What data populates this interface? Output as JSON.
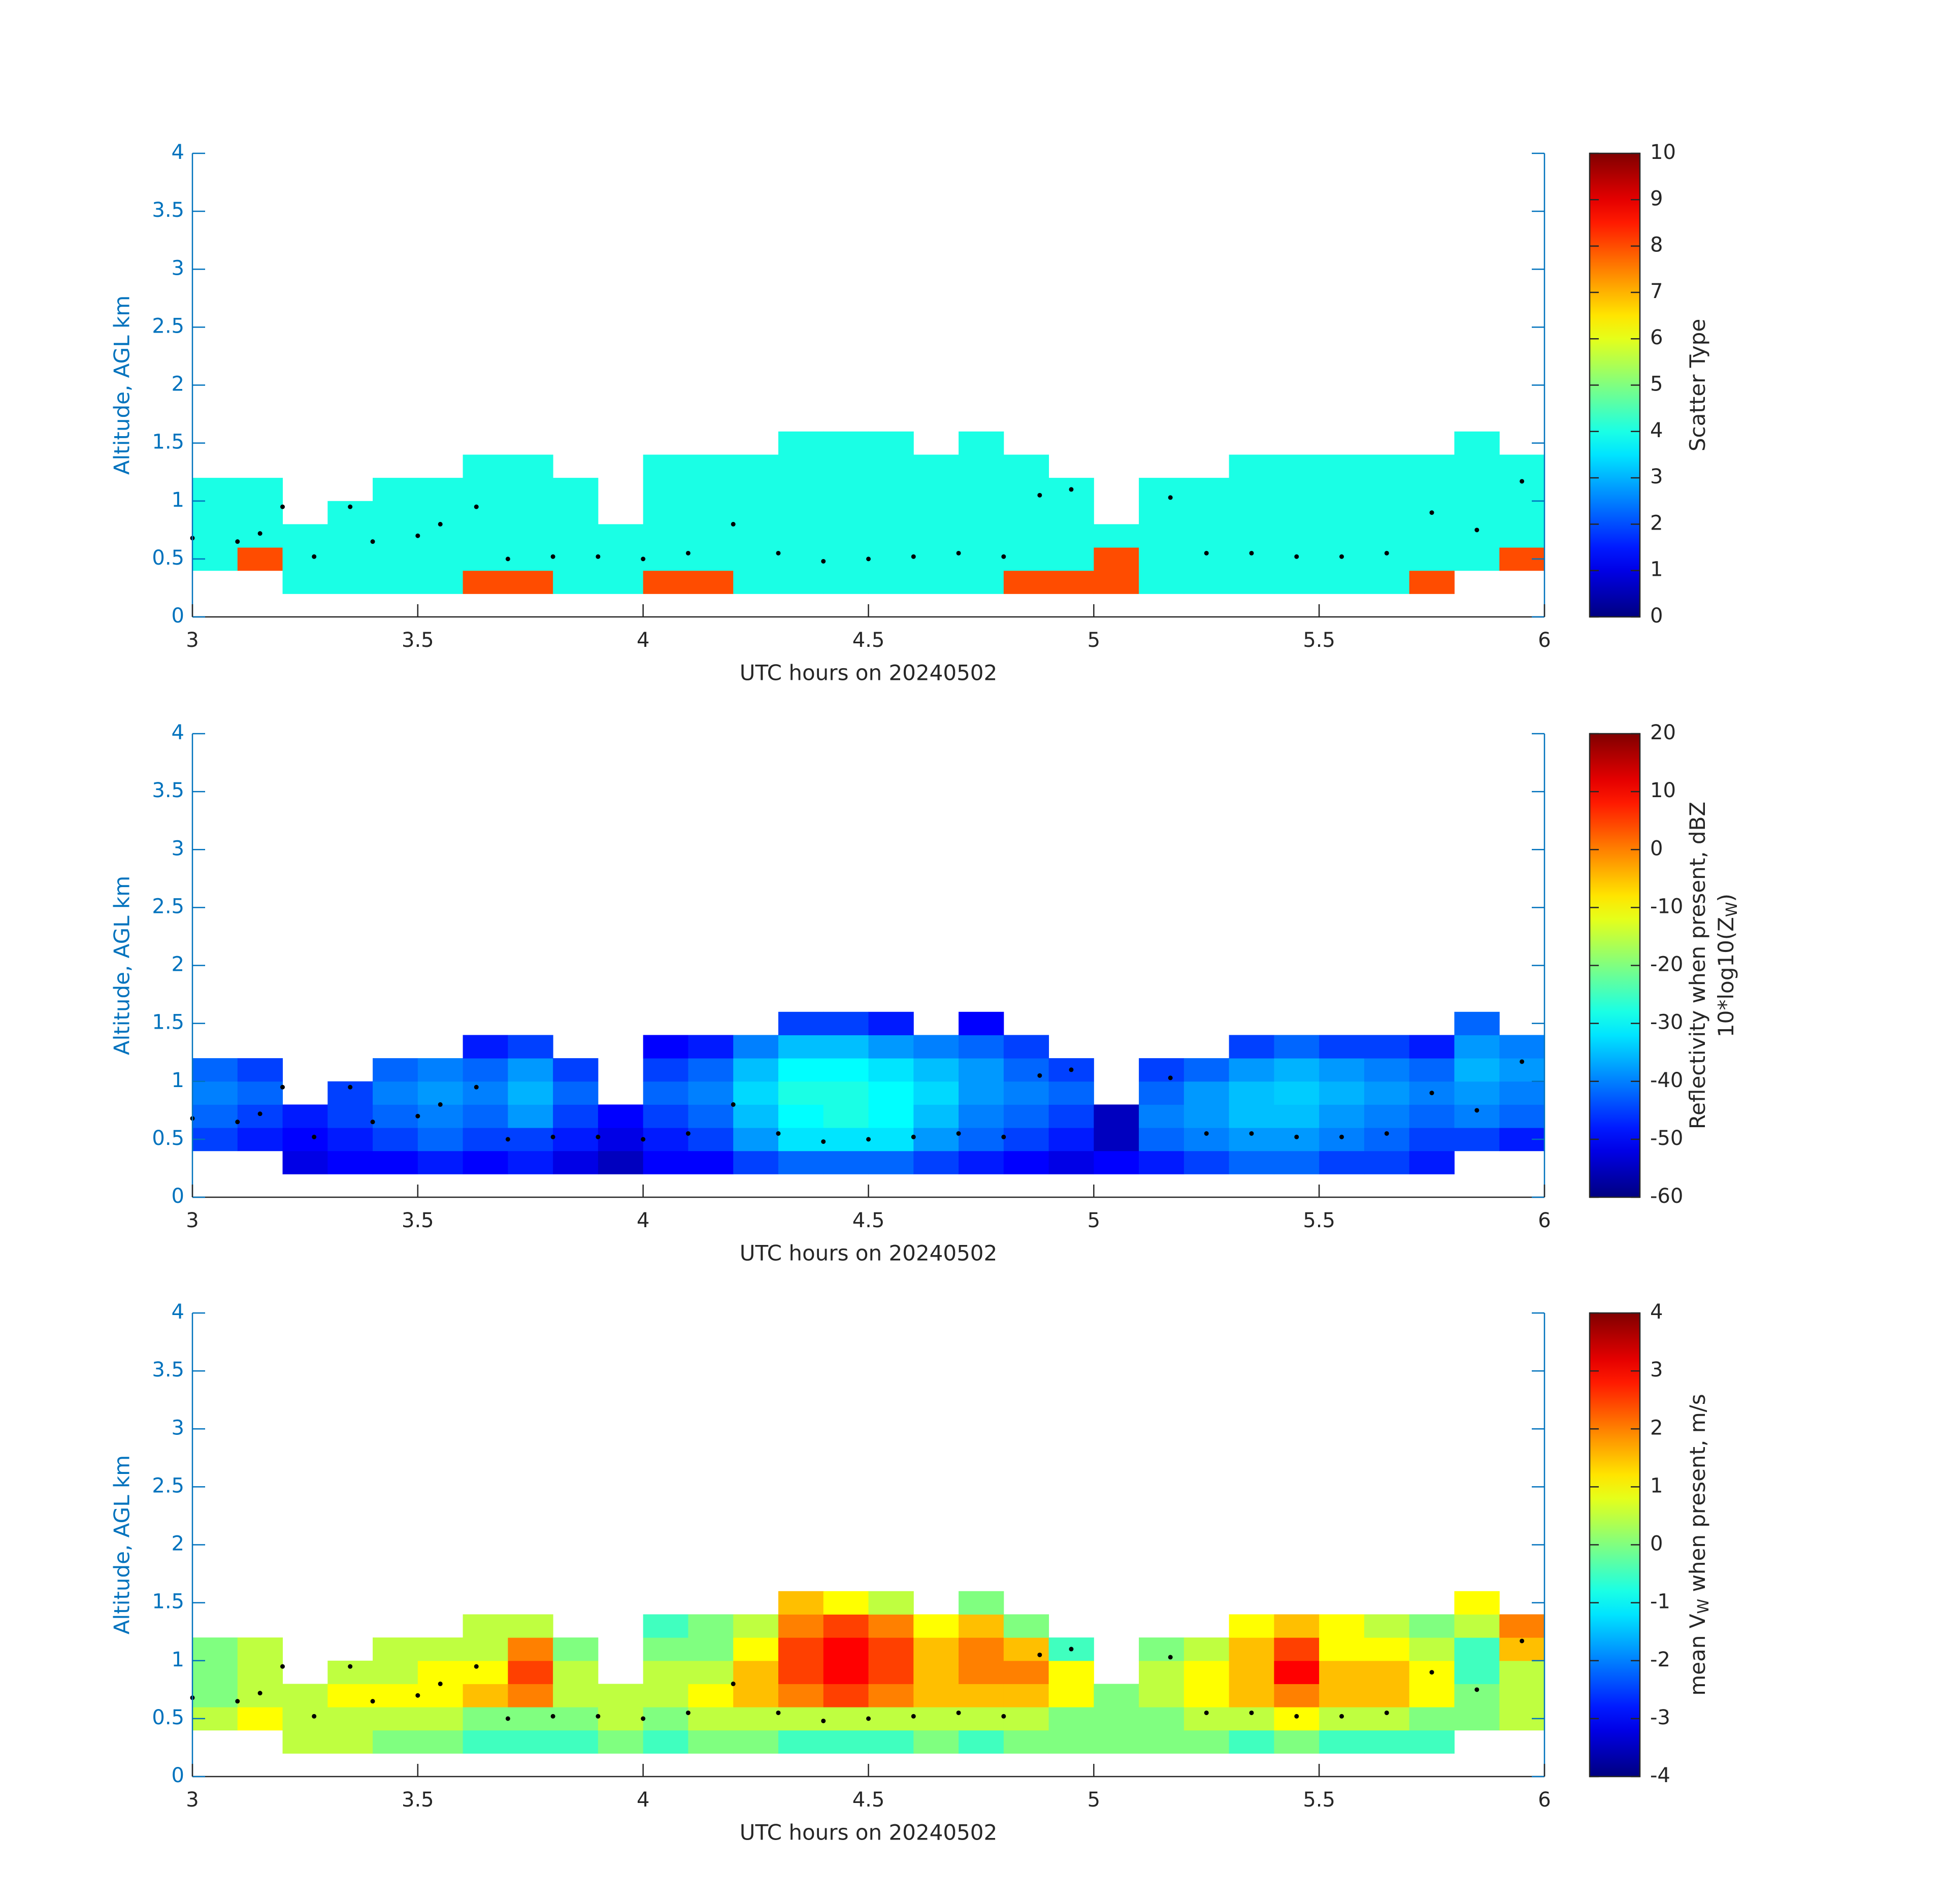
{
  "chart_data": [
    {
      "type": "heatmap",
      "xlabel": "UTC hours on 20240502",
      "ylabel": "Altitude, AGL km",
      "xlim": [
        3,
        6
      ],
      "ylim": [
        0,
        4
      ],
      "xticks": [
        3,
        3.5,
        4,
        4.5,
        5,
        5.5,
        6
      ],
      "yticks": [
        0,
        0.5,
        1,
        1.5,
        2,
        2.5,
        3,
        3.5,
        4
      ],
      "colormap": "jet",
      "clim": [
        0,
        10
      ],
      "cticks": [
        0,
        1,
        2,
        3,
        4,
        5,
        6,
        7,
        8,
        9,
        10
      ],
      "clabel": [
        [
          "Scatter Type"
        ]
      ],
      "x_edges": [
        3.0,
        3.1,
        3.2,
        3.3,
        3.4,
        3.5,
        3.6,
        3.7,
        3.8,
        3.9,
        4.0,
        4.1,
        4.2,
        4.3,
        4.4,
        4.5,
        4.6,
        4.7,
        4.8,
        4.9,
        5.0,
        5.1,
        5.2,
        5.3,
        5.4,
        5.5,
        5.6,
        5.7,
        5.8,
        5.9,
        6.0
      ],
      "y_edges": [
        0.2,
        0.4,
        0.6,
        0.8,
        1.0,
        1.2,
        1.4,
        1.6
      ],
      "z": [
        [
          null,
          null,
          4,
          4,
          4,
          4,
          8,
          8,
          4,
          4,
          8,
          8,
          4,
          4,
          4,
          4,
          4,
          4,
          8,
          8,
          8,
          4,
          4,
          4,
          4,
          4,
          4,
          8,
          null,
          null
        ],
        [
          4,
          8,
          4,
          4,
          4,
          4,
          4,
          4,
          4,
          4,
          4,
          4,
          4,
          4,
          4,
          4,
          4,
          4,
          4,
          4,
          8,
          4,
          4,
          4,
          4,
          4,
          4,
          4,
          4,
          8
        ],
        [
          4,
          4,
          4,
          4,
          4,
          4,
          4,
          4,
          4,
          4,
          4,
          4,
          4,
          4,
          4,
          4,
          4,
          4,
          4,
          4,
          4,
          4,
          4,
          4,
          4,
          4,
          4,
          4,
          4,
          4
        ],
        [
          4,
          4,
          null,
          4,
          4,
          4,
          4,
          4,
          4,
          null,
          4,
          4,
          4,
          4,
          4,
          4,
          4,
          4,
          4,
          4,
          null,
          4,
          4,
          4,
          4,
          4,
          4,
          4,
          4,
          4
        ],
        [
          4,
          4,
          null,
          null,
          4,
          4,
          4,
          4,
          4,
          null,
          4,
          4,
          4,
          4,
          4,
          4,
          4,
          4,
          4,
          4,
          null,
          4,
          4,
          4,
          4,
          4,
          4,
          4,
          4,
          4
        ],
        [
          null,
          null,
          null,
          null,
          null,
          null,
          4,
          4,
          null,
          null,
          4,
          4,
          4,
          4,
          4,
          4,
          4,
          4,
          4,
          null,
          null,
          null,
          null,
          4,
          4,
          4,
          4,
          4,
          4,
          4
        ],
        [
          null,
          null,
          null,
          null,
          null,
          null,
          null,
          null,
          null,
          null,
          null,
          null,
          null,
          4,
          4,
          4,
          null,
          4,
          null,
          null,
          null,
          null,
          null,
          null,
          null,
          null,
          null,
          null,
          4,
          null
        ]
      ],
      "overlay": {
        "type": "scatter",
        "color": "#000000",
        "x": [
          3.0,
          3.1,
          3.15,
          3.2,
          3.27,
          3.35,
          3.4,
          3.5,
          3.55,
          3.63,
          3.7,
          3.8,
          3.9,
          4.0,
          4.1,
          4.2,
          4.3,
          4.4,
          4.5,
          4.6,
          4.7,
          4.8,
          4.88,
          4.95,
          5.17,
          5.25,
          5.35,
          5.45,
          5.55,
          5.65,
          5.75,
          5.85,
          5.95
        ],
        "y": [
          0.68,
          0.65,
          0.72,
          0.95,
          0.52,
          0.95,
          0.65,
          0.7,
          0.8,
          0.95,
          0.5,
          0.52,
          0.52,
          0.5,
          0.55,
          0.8,
          0.55,
          0.48,
          0.5,
          0.52,
          0.55,
          0.52,
          1.05,
          1.1,
          1.03,
          0.55,
          0.55,
          0.52,
          0.52,
          0.55,
          0.9,
          0.75,
          1.17
        ]
      }
    },
    {
      "type": "heatmap",
      "xlabel": "UTC hours on 20240502",
      "ylabel": "Altitude, AGL km",
      "xlim": [
        3,
        6
      ],
      "ylim": [
        0,
        4
      ],
      "xticks": [
        3,
        3.5,
        4,
        4.5,
        5,
        5.5,
        6
      ],
      "yticks": [
        0,
        0.5,
        1,
        1.5,
        2,
        2.5,
        3,
        3.5,
        4
      ],
      "colormap": "jet",
      "clim": [
        -60,
        20
      ],
      "cticks": [
        -60,
        -50,
        -40,
        -30,
        -20,
        -10,
        0,
        10,
        20
      ],
      "clabel": [
        [
          "Reflectivity when present, dBZ"
        ],
        [
          "10*log10(Z",
          "W",
          ")"
        ]
      ],
      "x_edges": [
        3.0,
        3.1,
        3.2,
        3.3,
        3.4,
        3.5,
        3.6,
        3.7,
        3.8,
        3.9,
        4.0,
        4.1,
        4.2,
        4.3,
        4.4,
        4.5,
        4.6,
        4.7,
        4.8,
        4.9,
        5.0,
        5.1,
        5.2,
        5.3,
        5.4,
        5.5,
        5.6,
        5.7,
        5.8,
        5.9,
        6.0
      ],
      "y_edges": [
        0.2,
        0.4,
        0.6,
        0.8,
        1.0,
        1.2,
        1.4,
        1.6
      ],
      "z": [
        [
          null,
          null,
          -52,
          -50,
          -50,
          -48,
          -50,
          -48,
          -52,
          -55,
          -50,
          -50,
          -45,
          -42,
          -42,
          -42,
          -45,
          -48,
          -50,
          -52,
          -50,
          -48,
          -45,
          -42,
          -42,
          -45,
          -45,
          -48,
          null,
          null
        ],
        [
          -45,
          -48,
          -50,
          -48,
          -45,
          -42,
          -45,
          -45,
          -48,
          -52,
          -48,
          -45,
          -38,
          -32,
          -32,
          -32,
          -38,
          -42,
          -45,
          -48,
          -55,
          -42,
          -40,
          -38,
          -38,
          -40,
          -42,
          -45,
          -45,
          -48
        ],
        [
          -42,
          -45,
          -48,
          -45,
          -42,
          -40,
          -42,
          -38,
          -45,
          -50,
          -45,
          -42,
          -35,
          -30,
          -28,
          -30,
          -35,
          -40,
          -42,
          -45,
          -55,
          -40,
          -38,
          -35,
          -35,
          -38,
          -40,
          -42,
          -40,
          -42
        ],
        [
          -40,
          -42,
          null,
          -45,
          -40,
          -38,
          -40,
          -36,
          -42,
          null,
          -42,
          -40,
          -33,
          -28,
          -28,
          -30,
          -33,
          -38,
          -40,
          -42,
          null,
          -42,
          -38,
          -35,
          -34,
          -36,
          -38,
          -40,
          -38,
          -40
        ],
        [
          -42,
          -45,
          null,
          null,
          -42,
          -40,
          -42,
          -38,
          -45,
          null,
          -45,
          -42,
          -35,
          -30,
          -30,
          -32,
          -35,
          -38,
          -42,
          -45,
          null,
          -45,
          -42,
          -38,
          -36,
          -38,
          -40,
          -42,
          -36,
          -38
        ],
        [
          null,
          null,
          null,
          null,
          null,
          null,
          -48,
          -45,
          null,
          null,
          -50,
          -48,
          -40,
          -35,
          -35,
          -38,
          -40,
          -42,
          -45,
          null,
          null,
          null,
          null,
          -45,
          -42,
          -45,
          -45,
          -48,
          -38,
          -40
        ],
        [
          null,
          null,
          null,
          null,
          null,
          null,
          null,
          null,
          null,
          null,
          null,
          null,
          null,
          -45,
          -45,
          -48,
          null,
          -50,
          null,
          null,
          null,
          null,
          null,
          null,
          null,
          null,
          null,
          null,
          -42,
          null
        ]
      ],
      "overlay": {
        "type": "scatter",
        "color": "#000000",
        "x": [
          3.0,
          3.1,
          3.15,
          3.2,
          3.27,
          3.35,
          3.4,
          3.5,
          3.55,
          3.63,
          3.7,
          3.8,
          3.9,
          4.0,
          4.1,
          4.2,
          4.3,
          4.4,
          4.5,
          4.6,
          4.7,
          4.8,
          4.88,
          4.95,
          5.17,
          5.25,
          5.35,
          5.45,
          5.55,
          5.65,
          5.75,
          5.85,
          5.95
        ],
        "y": [
          0.68,
          0.65,
          0.72,
          0.95,
          0.52,
          0.95,
          0.65,
          0.7,
          0.8,
          0.95,
          0.5,
          0.52,
          0.52,
          0.5,
          0.55,
          0.8,
          0.55,
          0.48,
          0.5,
          0.52,
          0.55,
          0.52,
          1.05,
          1.1,
          1.03,
          0.55,
          0.55,
          0.52,
          0.52,
          0.55,
          0.9,
          0.75,
          1.17
        ]
      }
    },
    {
      "type": "heatmap",
      "xlabel": "UTC hours on 20240502",
      "ylabel": "Altitude, AGL km",
      "xlim": [
        3,
        6
      ],
      "ylim": [
        0,
        4
      ],
      "xticks": [
        3,
        3.5,
        4,
        4.5,
        5,
        5.5,
        6
      ],
      "yticks": [
        0,
        0.5,
        1,
        1.5,
        2,
        2.5,
        3,
        3.5,
        4
      ],
      "colormap": "jet",
      "clim": [
        -4,
        4
      ],
      "cticks": [
        -4,
        -3,
        -2,
        -1,
        0,
        1,
        2,
        3,
        4
      ],
      "clabel": [
        [
          "mean V",
          "W",
          " when present, m/s"
        ]
      ],
      "x_edges": [
        3.0,
        3.1,
        3.2,
        3.3,
        3.4,
        3.5,
        3.6,
        3.7,
        3.8,
        3.9,
        4.0,
        4.1,
        4.2,
        4.3,
        4.4,
        4.5,
        4.6,
        4.7,
        4.8,
        4.9,
        5.0,
        5.1,
        5.2,
        5.3,
        5.4,
        5.5,
        5.6,
        5.7,
        5.8,
        5.9,
        6.0
      ],
      "y_edges": [
        0.2,
        0.4,
        0.6,
        0.8,
        1.0,
        1.2,
        1.4,
        1.6
      ],
      "z": [
        [
          null,
          null,
          0.5,
          0.5,
          0,
          0,
          -0.5,
          -0.5,
          -0.5,
          0,
          -0.5,
          0,
          0,
          -0.5,
          -0.5,
          -0.5,
          0,
          -0.5,
          0,
          0,
          0,
          0,
          0,
          -0.5,
          0,
          -0.5,
          -0.5,
          -0.5,
          null,
          null
        ],
        [
          0.5,
          1,
          0.5,
          0.5,
          0.5,
          0.5,
          0,
          0,
          0,
          0.5,
          0,
          0.5,
          0.5,
          0.5,
          0.5,
          0.5,
          0.5,
          0.5,
          0.5,
          0,
          0,
          0,
          0.5,
          0.5,
          1,
          0.5,
          0.5,
          0,
          0,
          0.5
        ],
        [
          0,
          0.5,
          0.5,
          1,
          1,
          1,
          1.5,
          2,
          0.5,
          0.5,
          0.5,
          1,
          1.5,
          2,
          2.5,
          2,
          1.5,
          1.5,
          1.5,
          1,
          0,
          0.5,
          1,
          1.5,
          2,
          1.5,
          1.5,
          1,
          0,
          0.5
        ],
        [
          0,
          0.5,
          null,
          0.5,
          0.5,
          1,
          1,
          2.5,
          0.5,
          null,
          0.5,
          0.5,
          1.5,
          2.5,
          3,
          2.5,
          1.5,
          2,
          2,
          1,
          null,
          0.5,
          1,
          1.5,
          3,
          1.5,
          1.5,
          1,
          -0.5,
          0.5
        ],
        [
          0,
          0.5,
          null,
          null,
          0.5,
          0.5,
          0.5,
          2,
          0,
          null,
          0,
          0,
          1,
          2.5,
          3,
          2.5,
          1.5,
          2,
          1.5,
          -0.5,
          null,
          0,
          0.5,
          1.5,
          2.5,
          1,
          1,
          0.5,
          -0.5,
          1.5
        ],
        [
          null,
          null,
          null,
          null,
          null,
          null,
          0.5,
          0.5,
          null,
          null,
          -0.5,
          0,
          0.5,
          2,
          2.5,
          2,
          1,
          1.5,
          0,
          null,
          null,
          null,
          null,
          1,
          1.5,
          1,
          0.5,
          0,
          0.5,
          2
        ],
        [
          null,
          null,
          null,
          null,
          null,
          null,
          null,
          null,
          null,
          null,
          null,
          null,
          null,
          1.5,
          1,
          0.5,
          null,
          0,
          null,
          null,
          null,
          null,
          null,
          null,
          null,
          null,
          null,
          null,
          1,
          null
        ]
      ],
      "overlay": {
        "type": "scatter",
        "color": "#000000",
        "x": [
          3.0,
          3.1,
          3.15,
          3.2,
          3.27,
          3.35,
          3.4,
          3.5,
          3.55,
          3.63,
          3.7,
          3.8,
          3.9,
          4.0,
          4.1,
          4.2,
          4.3,
          4.4,
          4.5,
          4.6,
          4.7,
          4.8,
          4.88,
          4.95,
          5.17,
          5.25,
          5.35,
          5.45,
          5.55,
          5.65,
          5.75,
          5.85,
          5.95
        ],
        "y": [
          0.68,
          0.65,
          0.72,
          0.95,
          0.52,
          0.95,
          0.65,
          0.7,
          0.8,
          0.95,
          0.5,
          0.52,
          0.52,
          0.5,
          0.55,
          0.8,
          0.55,
          0.48,
          0.5,
          0.52,
          0.55,
          0.52,
          1.05,
          1.1,
          1.03,
          0.55,
          0.55,
          0.52,
          0.52,
          0.55,
          0.9,
          0.75,
          1.17
        ]
      }
    }
  ]
}
